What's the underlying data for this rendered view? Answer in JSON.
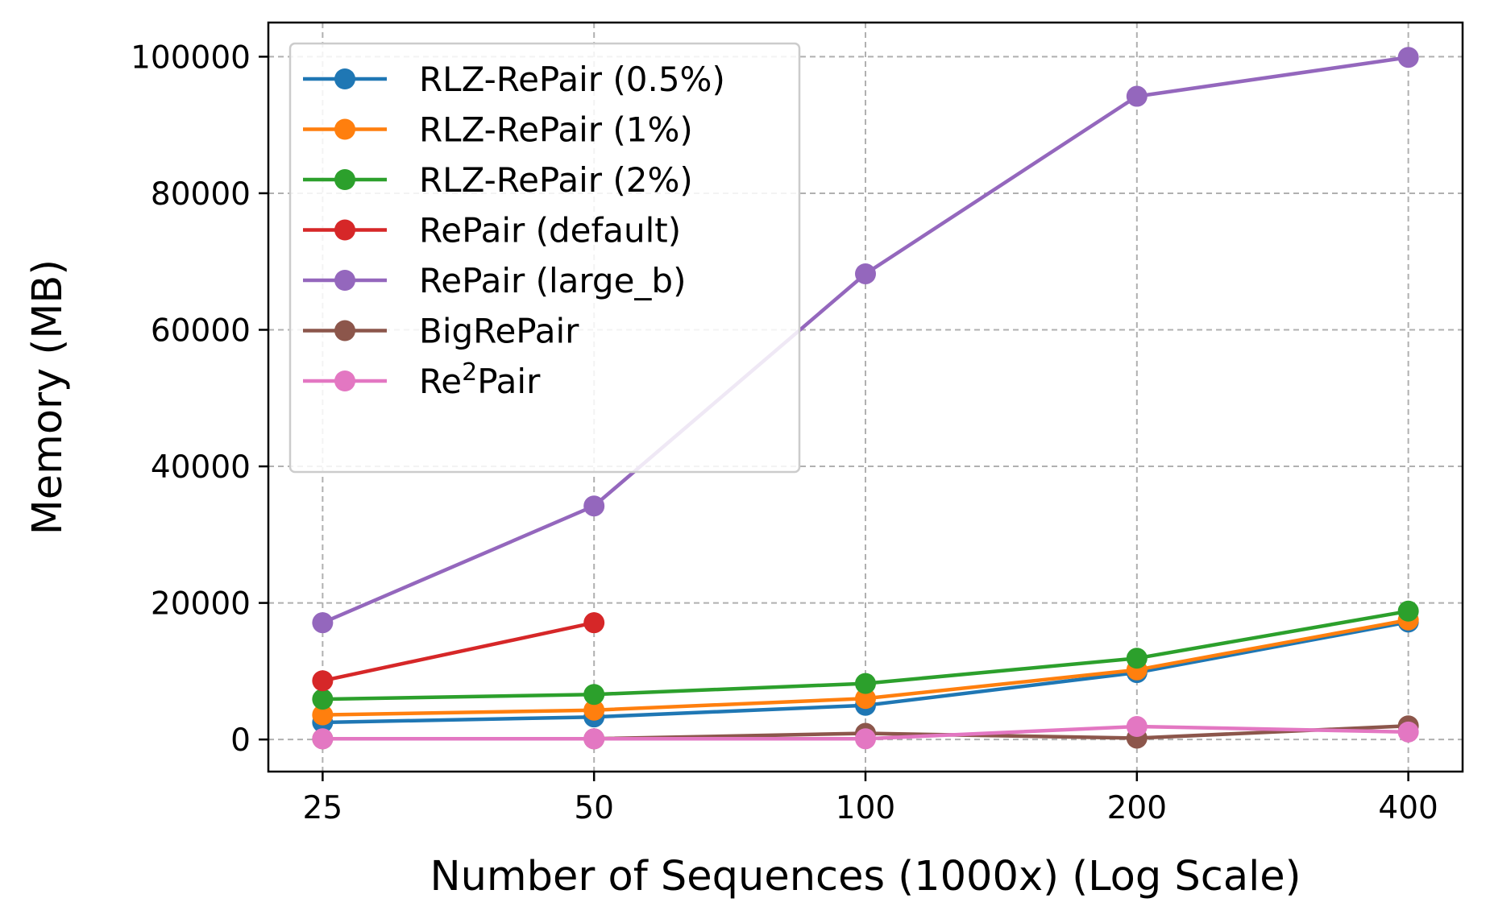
{
  "chart_data": {
    "type": "line",
    "title": "",
    "xlabel": "Number of Sequences (1000x) (Log Scale)",
    "ylabel": "Memory (MB)",
    "x_scale": "log2",
    "x": [
      25,
      50,
      100,
      200,
      400
    ],
    "x_tick_labels": [
      "25",
      "50",
      "100",
      "200",
      "400"
    ],
    "ylim": [
      -4700,
      105000
    ],
    "y_ticks": [
      0,
      20000,
      40000,
      60000,
      80000,
      100000
    ],
    "y_tick_labels": [
      "0",
      "20000",
      "40000",
      "60000",
      "80000",
      "100000"
    ],
    "grid": true,
    "legend_position": "top-left",
    "series": [
      {
        "name": "RLZ-RePair (0.5%)",
        "color": "#1f77b4",
        "values": [
          2500,
          3300,
          5000,
          9800,
          17200
        ]
      },
      {
        "name": "RLZ-RePair (1%)",
        "color": "#ff7f0e",
        "values": [
          3600,
          4300,
          6000,
          10200,
          17500
        ]
      },
      {
        "name": "RLZ-RePair (2%)",
        "color": "#2ca02c",
        "values": [
          5900,
          6600,
          8200,
          11900,
          18800
        ]
      },
      {
        "name": "RePair (default)",
        "color": "#d62728",
        "values": [
          8600,
          17100,
          null,
          null,
          null
        ]
      },
      {
        "name": "RePair (large_b)",
        "color": "#9467bd",
        "values": [
          17100,
          34200,
          68200,
          94200,
          99900
        ]
      },
      {
        "name": "BigRePair",
        "color": "#8c564b",
        "values": [
          100,
          100,
          900,
          200,
          2000
        ]
      },
      {
        "name": "Re2Pair",
        "name_base": "Re",
        "name_sup": "2",
        "name_tail": "Pair",
        "color": "#e377c2",
        "values": [
          100,
          100,
          100,
          1900,
          1100
        ]
      }
    ]
  }
}
